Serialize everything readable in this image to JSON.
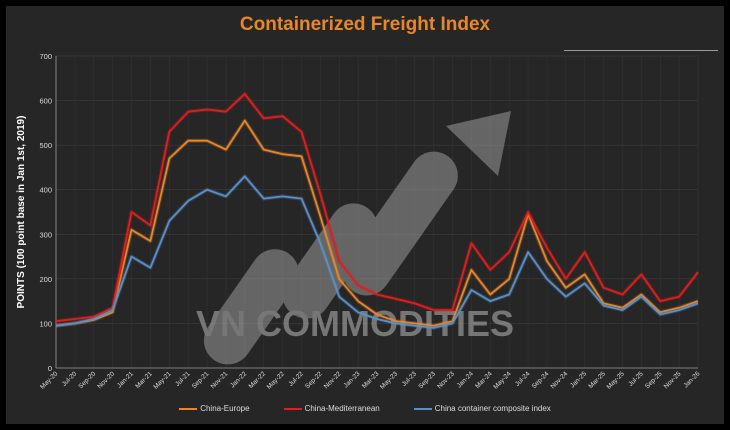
{
  "chart_data": {
    "type": "line",
    "title": "Containerized Freight Index",
    "ylabel": "POINTS (100 point base in Jan 1st, 2019)",
    "xlabel": "",
    "ylim": [
      0,
      700
    ],
    "yticks": [
      0,
      100,
      200,
      300,
      400,
      500,
      600,
      700
    ],
    "grid": true,
    "legend_position": "bottom",
    "x_tick_labels": [
      "May-20",
      "Jul-20",
      "Sep-20",
      "Nov-20",
      "Jan-21",
      "Mar-21",
      "May-21",
      "Jul-21",
      "Sep-21",
      "Nov-21",
      "Jan-22",
      "Mar-22",
      "May-22",
      "Jul-22",
      "Sep-22",
      "Nov-22",
      "Jan-23",
      "Mar-23",
      "May-23",
      "Jul-23",
      "Sep-23",
      "Nov-23",
      "Jan-24",
      "Mar-24",
      "May-24",
      "Jul-24",
      "Sep-24",
      "Nov-24",
      "Jan-25",
      "Mar-25",
      "May-25",
      "Jul-25",
      "Sep-25",
      "Nov-25",
      "Jan-26"
    ],
    "x": [
      "May-20",
      "Jul-20",
      "Sep-20",
      "Nov-20",
      "Jan-21",
      "Mar-21",
      "May-21",
      "Jul-21",
      "Sep-21",
      "Nov-21",
      "Jan-22",
      "Mar-22",
      "May-22",
      "Jul-22",
      "Sep-22",
      "Nov-22",
      "Jan-23",
      "Mar-23",
      "May-23",
      "Jul-23",
      "Sep-23",
      "Nov-23",
      "Jan-24",
      "Mar-24",
      "May-24",
      "Jul-24",
      "Sep-24",
      "Nov-24",
      "Jan-25",
      "Mar-25",
      "May-25",
      "Jul-25",
      "Sep-25",
      "Nov-25",
      "Jan-26"
    ],
    "series": [
      {
        "name": "China-Europe",
        "color": "#E8862A",
        "values": [
          95,
          100,
          108,
          125,
          310,
          285,
          470,
          510,
          510,
          490,
          555,
          490,
          480,
          475,
          340,
          200,
          150,
          120,
          105,
          100,
          95,
          105,
          220,
          165,
          200,
          345,
          240,
          180,
          210,
          145,
          135,
          165,
          125,
          135,
          150
        ]
      },
      {
        "name": "China-Mediterranean",
        "color": "#E01E1E",
        "values": [
          105,
          110,
          115,
          135,
          350,
          320,
          530,
          575,
          580,
          575,
          615,
          560,
          565,
          530,
          390,
          240,
          185,
          165,
          155,
          145,
          130,
          130,
          280,
          220,
          260,
          350,
          270,
          200,
          260,
          180,
          165,
          210,
          150,
          160,
          215
        ]
      },
      {
        "name": "China container composite index",
        "color": "#5B8FC8",
        "values": [
          95,
          100,
          110,
          130,
          250,
          225,
          330,
          375,
          400,
          385,
          430,
          380,
          385,
          380,
          280,
          160,
          125,
          110,
          100,
          95,
          90,
          100,
          175,
          150,
          165,
          260,
          200,
          160,
          190,
          140,
          130,
          160,
          120,
          130,
          145
        ]
      }
    ]
  },
  "watermark": {
    "text": "VN COMMODITIES"
  }
}
